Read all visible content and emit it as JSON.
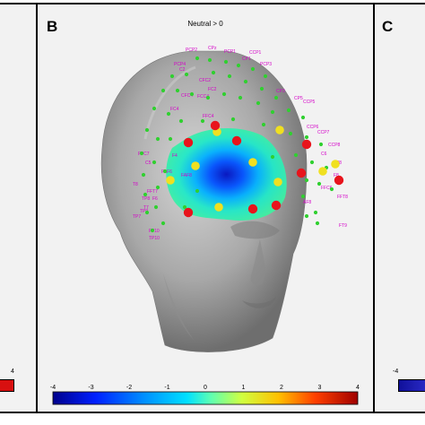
{
  "panels": {
    "left": {
      "tick_max": "4"
    },
    "center": {
      "letter": "B",
      "title": "Neutral > 0",
      "colorbar": {
        "ticks": [
          "-4",
          "-3",
          "-2",
          "-1",
          "0",
          "1",
          "2",
          "3",
          "4"
        ],
        "range": [
          -4,
          4
        ],
        "colors": [
          "#0000a0",
          "#0060ff",
          "#00d0ff",
          "#60ffa0",
          "#e0ff40",
          "#ffb000",
          "#ff3000",
          "#a00000"
        ]
      }
    },
    "right": {
      "letter": "C",
      "tick_min": "-4"
    }
  },
  "electrodes": {
    "labels": [
      "CPz",
      "PCP2",
      "PCP1",
      "CP1",
      "CCP1",
      "PCP3",
      "CP3",
      "CFC2",
      "C2",
      "CP5",
      "CCP5",
      "PCP4",
      "FC2",
      "CFC4",
      "FCC4",
      "FC4",
      "F2",
      "FFC4",
      "CCP7",
      "FT8",
      "FAF8",
      "FAF6",
      "AF8",
      "FT9",
      "FT10",
      "TP8",
      "TP9",
      "TP10",
      "FFC7",
      "CCP6",
      "CCP8",
      "C5",
      "C6",
      "T8",
      "F6",
      "F4",
      "F8",
      "FFC6",
      "FFT8",
      "TP7",
      "FFT7",
      "T7"
    ],
    "marker_colors": {
      "red": "#e8141c",
      "yellow": "#f0e020",
      "green": "#30d030"
    }
  }
}
